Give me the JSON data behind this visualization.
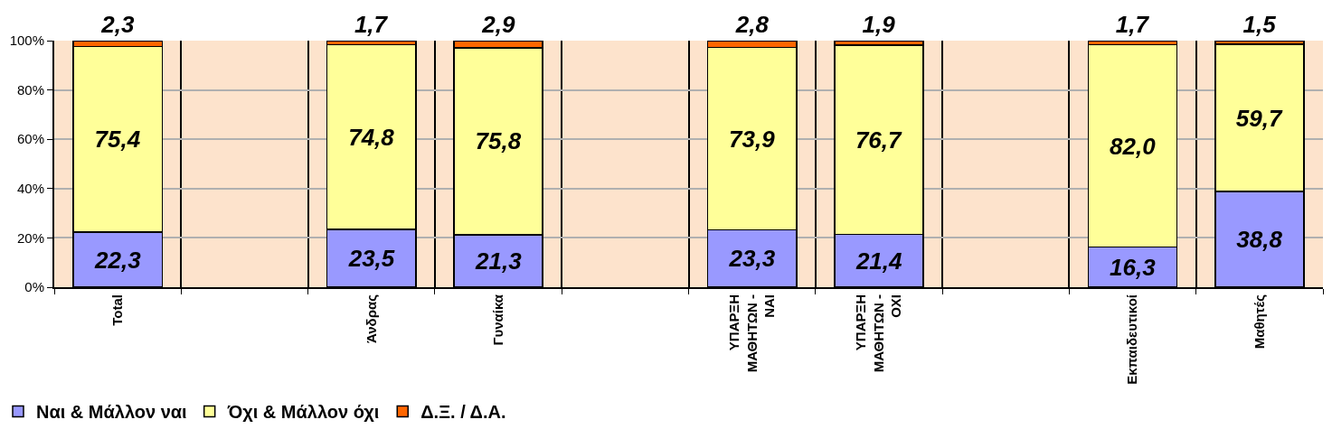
{
  "chart_data": {
    "type": "bar",
    "stacked": true,
    "grid": true,
    "legend": "bottom left",
    "categories": [
      "Total",
      null,
      "Άνδρας",
      "Γυναίκα",
      null,
      "ΥΠΑΡΞΗ ΜΑΘΗΤΩΝ - ΝΑΙ",
      "ΥΠΑΡΞΗ ΜΑΘΗΤΩΝ - ΟΧΙ",
      null,
      "Εκπαιδευτικοί",
      "Μαθητές"
    ],
    "ylim": [
      0,
      100
    ],
    "yticks": [
      {
        "value": 0,
        "label": "0%"
      },
      {
        "value": 20,
        "label": "20%"
      },
      {
        "value": 40,
        "label": "40%"
      },
      {
        "value": 60,
        "label": "60%"
      },
      {
        "value": 80,
        "label": "80%"
      },
      {
        "value": 100,
        "label": "100%"
      }
    ],
    "series": [
      {
        "name": "Ναι & Μάλλον ναι",
        "color": "#9999ff",
        "values": [
          22.3,
          null,
          23.5,
          21.3,
          null,
          23.3,
          21.4,
          null,
          16.3,
          38.8
        ],
        "value_labels": [
          "22,3",
          null,
          "23,5",
          "21,3",
          null,
          "23,3",
          "21,4",
          null,
          "16,3",
          "38,8"
        ]
      },
      {
        "name": "Όχι & Μάλλον όχι",
        "color": "#ffff99",
        "values": [
          75.4,
          null,
          74.8,
          75.8,
          null,
          73.9,
          76.7,
          null,
          82.0,
          59.7
        ],
        "value_labels": [
          "75,4",
          null,
          "74,8",
          "75,8",
          null,
          "73,9",
          "76,7",
          null,
          "82,0",
          "59,7"
        ]
      },
      {
        "name": "Δ.Ξ. / Δ.Α.",
        "color": "#ff6600",
        "values": [
          2.3,
          null,
          1.7,
          2.9,
          null,
          2.8,
          1.9,
          null,
          1.7,
          1.5
        ],
        "value_labels": [
          "2,3",
          null,
          "1,7",
          "2,9",
          null,
          "2,8",
          "1,9",
          null,
          "1,7",
          "1,5"
        ]
      }
    ]
  }
}
